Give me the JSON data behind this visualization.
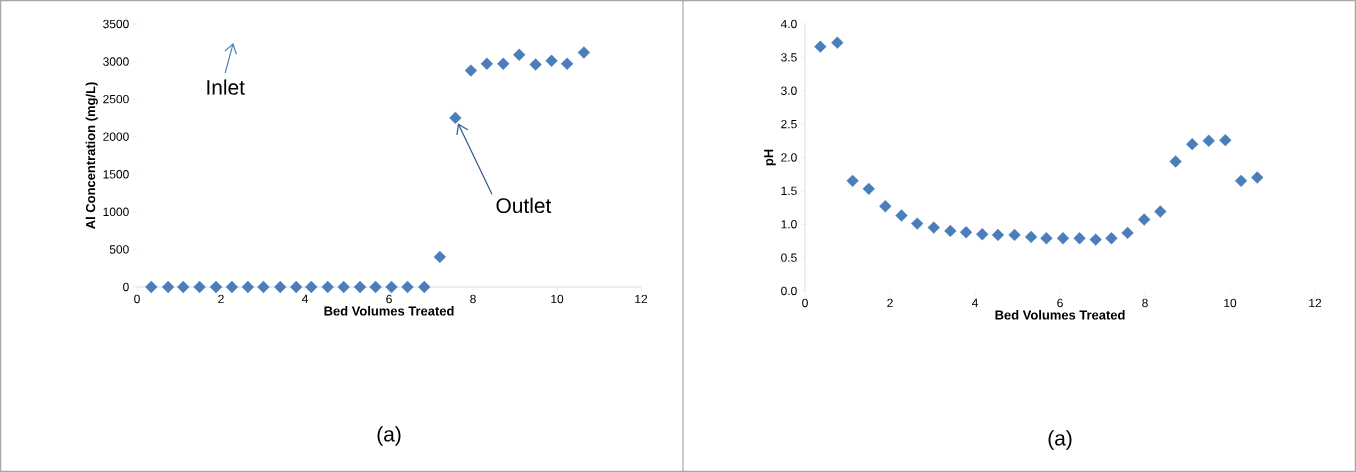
{
  "chart_data": [
    {
      "type": "scatter",
      "xlabel": "Bed Volumes Treated",
      "ylabel": "Al Concentration (mg/L)",
      "color": "#4a7ebb",
      "marker": "diamond",
      "x": [
        0.34,
        0.74,
        1.1,
        1.49,
        1.88,
        2.26,
        2.64,
        3.01,
        3.41,
        3.79,
        4.15,
        4.54,
        4.92,
        5.31,
        5.68,
        6.06,
        6.44,
        6.84,
        7.21,
        7.58,
        7.95,
        8.33,
        8.72,
        9.1,
        9.49,
        9.87,
        10.24,
        10.64
      ],
      "values": [
        0,
        0,
        0,
        0,
        0,
        0,
        0,
        0,
        0,
        0,
        0,
        0,
        0,
        0,
        0,
        0,
        0,
        0,
        400,
        2250,
        2880,
        2970,
        2970,
        3090,
        2960,
        3010,
        2970,
        3120
      ],
      "xlim": [
        0,
        12
      ],
      "xticks": [
        0,
        2,
        4,
        6,
        8,
        10,
        12
      ],
      "ylim": [
        0,
        3500
      ],
      "yticks": [
        0,
        500,
        1000,
        1500,
        2000,
        2500,
        3000,
        3500
      ],
      "annotations": [
        "Inlet",
        {
          "text": "Outlet",
          "x": 7.58,
          "y": 2250
        },
        "(a)"
      ]
    },
    {
      "type": "scatter",
      "xlabel": "Bed Volumes Treated",
      "ylabel": "pH",
      "color": "#4a7ebb",
      "marker": "diamond",
      "x": [
        0.36,
        0.76,
        1.12,
        1.5,
        1.89,
        2.27,
        2.64,
        3.03,
        3.42,
        3.79,
        4.17,
        4.54,
        4.93,
        5.32,
        5.68,
        6.07,
        6.46,
        6.84,
        7.21,
        7.59,
        7.98,
        8.36,
        8.72,
        9.11,
        9.5,
        9.89,
        10.26,
        10.64
      ],
      "values": [
        3.66,
        3.72,
        1.65,
        1.53,
        1.27,
        1.13,
        1.01,
        0.95,
        0.9,
        0.88,
        0.85,
        0.84,
        0.84,
        0.81,
        0.79,
        0.79,
        0.79,
        0.77,
        0.79,
        0.87,
        1.07,
        1.19,
        1.94,
        2.2,
        2.25,
        2.26,
        1.65,
        1.7
      ],
      "xlim": [
        0,
        12
      ],
      "xticks": [
        0,
        2,
        4,
        6,
        8,
        10,
        12
      ],
      "ylim": [
        0,
        4
      ],
      "yticks": [
        {
          "value": 0,
          "label": "0.0"
        },
        {
          "value": 0.5,
          "label": "0.5"
        },
        {
          "value": 1,
          "label": "1.0"
        },
        {
          "value": 1.5,
          "label": "1.5"
        },
        {
          "value": 2,
          "label": "2.0"
        },
        {
          "value": 2.5,
          "label": "2.5"
        },
        {
          "value": 3,
          "label": "3.0"
        },
        {
          "value": 3.5,
          "label": "3.5"
        },
        {
          "value": 4,
          "label": "4.0"
        }
      ],
      "annotations": [
        "(a)"
      ]
    }
  ]
}
